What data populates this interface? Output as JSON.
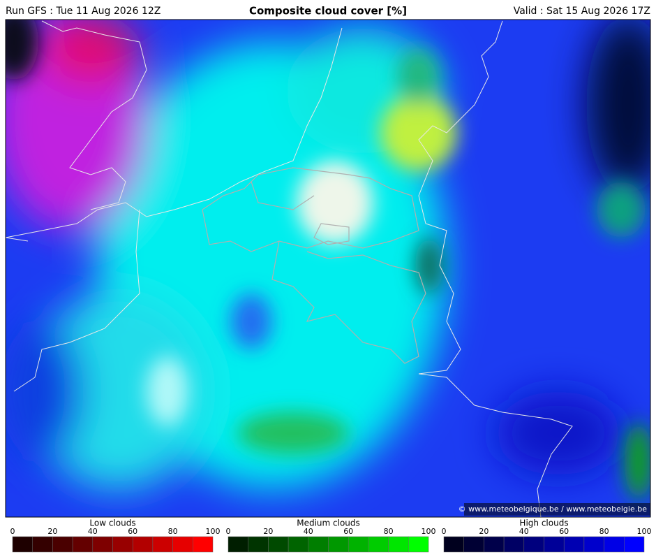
{
  "header": {
    "run": "Run GFS : Tue 11 Aug 2026 12Z",
    "title": "Composite cloud cover [%]",
    "valid": "Valid : Sat 15 Aug 2026 17Z"
  },
  "map": {
    "credit": "© www.meteobelgique.be / www.meteobelgie.be"
  },
  "legends": [
    {
      "title": "Low clouds",
      "ticks": [
        0,
        20,
        40,
        60,
        80,
        100
      ],
      "colors": [
        "#1e0000",
        "#340000",
        "#4a0000",
        "#640000",
        "#7e0000",
        "#980000",
        "#b20000",
        "#cc0000",
        "#e60000",
        "#ff0000"
      ]
    },
    {
      "title": "Medium clouds",
      "ticks": [
        0,
        20,
        40,
        60,
        80,
        100
      ],
      "colors": [
        "#001e00",
        "#003400",
        "#004a00",
        "#006400",
        "#007e00",
        "#009800",
        "#00b200",
        "#00cc00",
        "#00e600",
        "#00ff00"
      ]
    },
    {
      "title": "High clouds",
      "ticks": [
        0,
        20,
        40,
        60,
        80,
        100
      ],
      "colors": [
        "#00001e",
        "#000034",
        "#00004a",
        "#000064",
        "#00007e",
        "#000098",
        "#0000b2",
        "#0000cc",
        "#0000e6",
        "#0000ff"
      ]
    }
  ]
}
